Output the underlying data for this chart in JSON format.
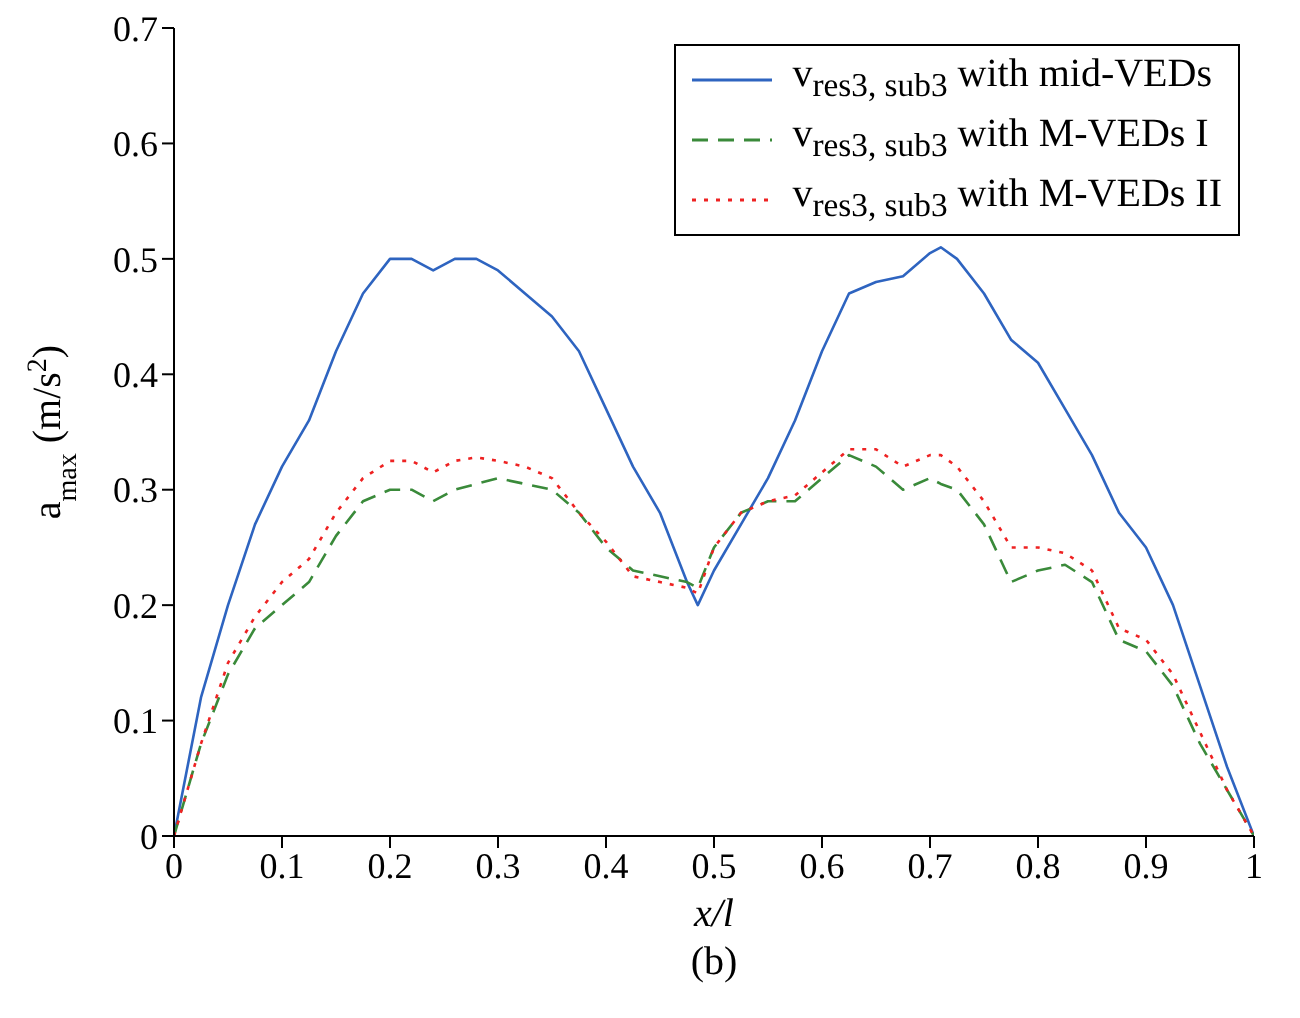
{
  "chart_data": {
    "type": "line",
    "xlabel": "x/l",
    "ylabel": "a$_{max}$ (m/s$^{2}$)",
    "annotations": [
      "(b)"
    ],
    "x": [
      0,
      0.025,
      0.05,
      0.075,
      0.1,
      0.125,
      0.15,
      0.175,
      0.2,
      0.22,
      0.24,
      0.26,
      0.28,
      0.3,
      0.325,
      0.35,
      0.375,
      0.4,
      0.425,
      0.45,
      0.475,
      0.485,
      0.5,
      0.525,
      0.55,
      0.575,
      0.6,
      0.625,
      0.65,
      0.675,
      0.7,
      0.71,
      0.725,
      0.75,
      0.775,
      0.8,
      0.825,
      0.85,
      0.875,
      0.9,
      0.925,
      0.95,
      0.975,
      1
    ],
    "series": [
      {
        "name": "v$_{res3, sub3}$ with mid-VEDs",
        "color": "#2e64c0",
        "line_style": "solid",
        "values": [
          0,
          0.12,
          0.2,
          0.27,
          0.32,
          0.36,
          0.42,
          0.47,
          0.5,
          0.5,
          0.49,
          0.5,
          0.5,
          0.49,
          0.47,
          0.45,
          0.42,
          0.37,
          0.32,
          0.28,
          0.22,
          0.2,
          0.23,
          0.27,
          0.31,
          0.36,
          0.42,
          0.47,
          0.48,
          0.485,
          0.505,
          0.51,
          0.5,
          0.47,
          0.43,
          0.41,
          0.37,
          0.33,
          0.28,
          0.25,
          0.2,
          0.13,
          0.06,
          0
        ]
      },
      {
        "name": "v$_{res3, sub3}$ with M-VEDs I",
        "color": "#3a8a3a",
        "line_style": "dashed",
        "values": [
          0,
          0.08,
          0.14,
          0.18,
          0.2,
          0.22,
          0.26,
          0.29,
          0.3,
          0.3,
          0.29,
          0.3,
          0.305,
          0.31,
          0.305,
          0.3,
          0.28,
          0.25,
          0.23,
          0.225,
          0.22,
          0.215,
          0.25,
          0.28,
          0.29,
          0.29,
          0.31,
          0.33,
          0.32,
          0.3,
          0.31,
          0.305,
          0.3,
          0.27,
          0.22,
          0.23,
          0.235,
          0.22,
          0.17,
          0.16,
          0.13,
          0.08,
          0.04,
          0
        ]
      },
      {
        "name": "v$_{res3, sub3}$ with M-VEDs II",
        "color": "#ee2222",
        "line_style": "dotted",
        "values": [
          0,
          0.08,
          0.15,
          0.19,
          0.22,
          0.24,
          0.28,
          0.31,
          0.325,
          0.325,
          0.315,
          0.325,
          0.328,
          0.325,
          0.32,
          0.31,
          0.28,
          0.255,
          0.225,
          0.22,
          0.215,
          0.21,
          0.25,
          0.28,
          0.29,
          0.295,
          0.315,
          0.335,
          0.335,
          0.32,
          0.33,
          0.33,
          0.32,
          0.29,
          0.25,
          0.25,
          0.245,
          0.23,
          0.18,
          0.17,
          0.14,
          0.09,
          0.04,
          0
        ]
      }
    ],
    "xlim": [
      0,
      1
    ],
    "xticks": [
      0,
      0.1,
      0.2,
      0.3,
      0.4,
      0.5,
      0.6,
      0.7,
      0.8,
      0.9,
      1
    ],
    "ylim": [
      0,
      0.7
    ],
    "yticks": [
      0,
      0.1,
      0.2,
      0.3,
      0.4,
      0.5,
      0.6,
      0.7
    ],
    "legend": "top right",
    "grid": false,
    "marker": "none"
  }
}
